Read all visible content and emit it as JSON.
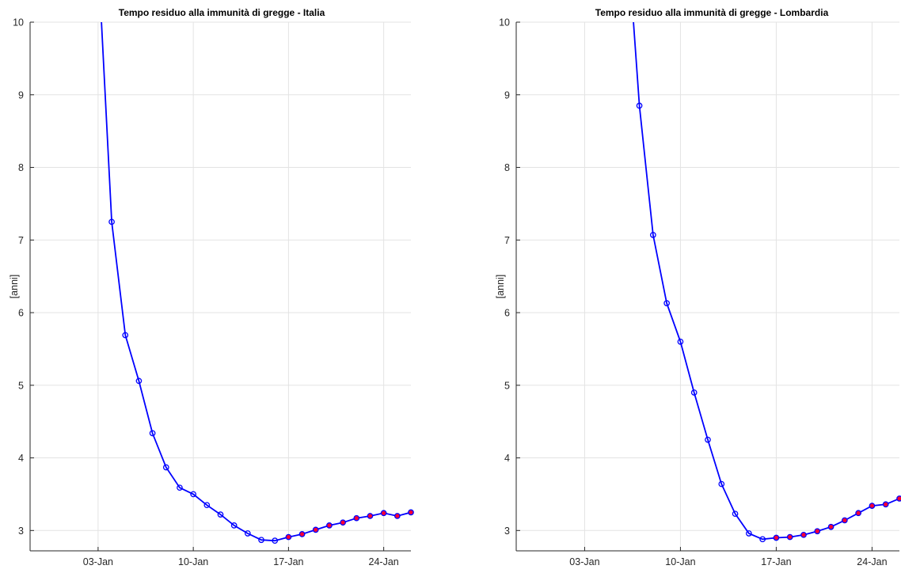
{
  "colors": {
    "line": "#0000ff",
    "marker_edge": "#0000ff",
    "marker_fill_forecast": "#ff0033",
    "grid": "#e3e3e3",
    "axis": "#262626"
  },
  "chart_data": [
    {
      "type": "line",
      "title": "Tempo residuo alla immunità di gregge - Italia",
      "xlabel": "",
      "ylabel": "[anni]",
      "x_tick_labels": [
        "03-Jan",
        "10-Jan",
        "17-Jan",
        "24-Jan"
      ],
      "x_ticks_day": [
        3,
        10,
        17,
        24
      ],
      "y_tick_labels": [
        "3",
        "4",
        "5",
        "6",
        "7",
        "8",
        "9",
        "10"
      ],
      "xlim_day": [
        -2,
        26
      ],
      "ylim": [
        2.72,
        10
      ],
      "grid": true,
      "series": [
        {
          "x_day": [
            3,
            4,
            5,
            6,
            7,
            8,
            9,
            10,
            11,
            12,
            13,
            14,
            15,
            16,
            17,
            18,
            19,
            20,
            21,
            22,
            23,
            24,
            25,
            26
          ],
          "values": [
            10.9,
            7.25,
            5.69,
            5.06,
            4.34,
            3.87,
            3.59,
            3.5,
            3.35,
            3.22,
            3.07,
            2.96,
            2.87,
            2.86,
            2.91,
            2.95,
            3.01,
            3.07,
            3.11,
            3.17,
            3.2,
            3.24,
            3.2,
            3.25
          ],
          "markers_shown_from_day": 4,
          "forecast_from_day": 17
        }
      ]
    },
    {
      "type": "line",
      "title": "Tempo residuo alla immunità di gregge - Lombardia",
      "xlabel": "",
      "ylabel": "[anni]",
      "x_tick_labels": [
        "03-Jan",
        "10-Jan",
        "17-Jan",
        "24-Jan"
      ],
      "x_ticks_day": [
        3,
        10,
        17,
        24
      ],
      "y_tick_labels": [
        "3",
        "4",
        "5",
        "6",
        "7",
        "8",
        "9",
        "10"
      ],
      "xlim_day": [
        -2,
        26
      ],
      "ylim": [
        2.72,
        10
      ],
      "grid": true,
      "series": [
        {
          "x_day": [
            6,
            7,
            8,
            9,
            10,
            11,
            12,
            13,
            14,
            15,
            16,
            17,
            18,
            19,
            20,
            21,
            22,
            23,
            24,
            25,
            26
          ],
          "values": [
            11.5,
            8.85,
            7.07,
            6.13,
            5.6,
            4.9,
            4.25,
            3.64,
            3.23,
            2.96,
            2.88,
            2.9,
            2.91,
            2.94,
            2.99,
            3.05,
            3.14,
            3.24,
            3.34,
            3.36,
            3.44
          ],
          "markers_shown_from_day": 7,
          "forecast_from_day": 17
        }
      ]
    }
  ]
}
